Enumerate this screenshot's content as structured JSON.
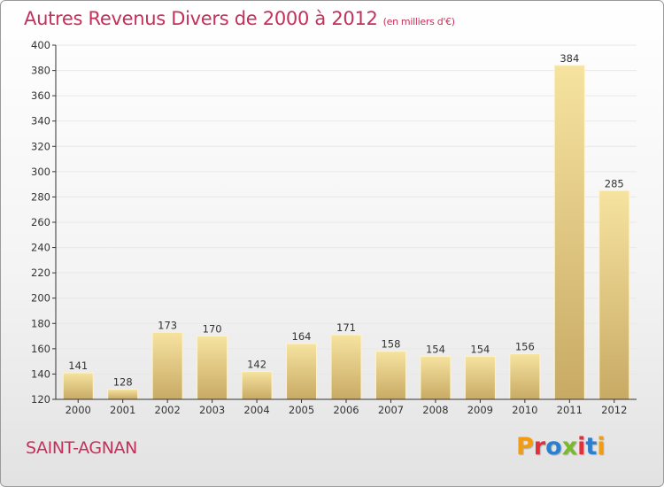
{
  "header": {
    "title": "Autres Revenus Divers de 2000 à 2012",
    "subtitle": "(en milliers d'€)"
  },
  "footer": {
    "commune": "SAINT-AGNAN",
    "brand": "Proxiti",
    "brand_colors": [
      "#f39c12",
      "#e0303c",
      "#2a7fd0",
      "#7ab82c",
      "#e0303c",
      "#2a7fd0",
      "#f39c12"
    ]
  },
  "colors": {
    "accent": "#c5305b",
    "bar_light": "#f6e3a0",
    "bar_dark": "#c8aa64",
    "grid": "#e8e8e8",
    "axis": "#333333"
  },
  "chart_data": {
    "type": "bar",
    "categories": [
      "2000",
      "2001",
      "2002",
      "2003",
      "2004",
      "2005",
      "2006",
      "2007",
      "2008",
      "2009",
      "2010",
      "2011",
      "2012"
    ],
    "values": [
      141,
      128,
      173,
      170,
      142,
      164,
      171,
      158,
      154,
      154,
      156,
      384,
      285
    ],
    "title": "Autres Revenus Divers de 2000 à 2012",
    "subtitle": "(en milliers d'€)",
    "ylim": [
      120,
      400
    ],
    "yticks": [
      120,
      140,
      160,
      180,
      200,
      220,
      240,
      260,
      280,
      300,
      320,
      340,
      360,
      380,
      400
    ],
    "grid": true,
    "data_labels": true
  }
}
